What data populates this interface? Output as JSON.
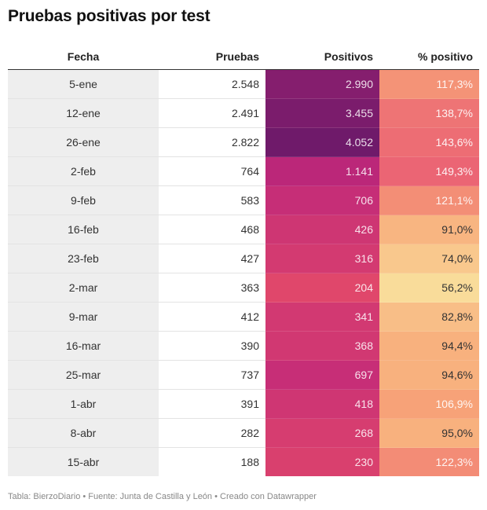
{
  "title": "Pruebas positivas por test",
  "footer": "Tabla: BierzoDiario • Fuente: Junta de Castilla y León • Creado con Datawrapper",
  "chart_data": {
    "type": "table",
    "columns": [
      "Fecha",
      "Pruebas",
      "Positivos",
      "% positivo"
    ],
    "rows": [
      {
        "fecha": "5-ene",
        "pruebas": "2.548",
        "positivos": "2.990",
        "pct": "117,3%",
        "pos_value": 2990,
        "pct_value": 117.3
      },
      {
        "fecha": "12-ene",
        "pruebas": "2.491",
        "positivos": "3.455",
        "pct": "138,7%",
        "pos_value": 3455,
        "pct_value": 138.7
      },
      {
        "fecha": "26-ene",
        "pruebas": "2.822",
        "positivos": "4.052",
        "pct": "143,6%",
        "pos_value": 4052,
        "pct_value": 143.6
      },
      {
        "fecha": "2-feb",
        "pruebas": "764",
        "positivos": "1.141",
        "pct": "149,3%",
        "pos_value": 1141,
        "pct_value": 149.3
      },
      {
        "fecha": "9-feb",
        "pruebas": "583",
        "positivos": "706",
        "pct": "121,1%",
        "pos_value": 706,
        "pct_value": 121.1
      },
      {
        "fecha": "16-feb",
        "pruebas": "468",
        "positivos": "426",
        "pct": "91,0%",
        "pos_value": 426,
        "pct_value": 91.0
      },
      {
        "fecha": "23-feb",
        "pruebas": "427",
        "positivos": "316",
        "pct": "74,0%",
        "pos_value": 316,
        "pct_value": 74.0
      },
      {
        "fecha": "2-mar",
        "pruebas": "363",
        "positivos": "204",
        "pct": "56,2%",
        "pos_value": 204,
        "pct_value": 56.2
      },
      {
        "fecha": "9-mar",
        "pruebas": "412",
        "positivos": "341",
        "pct": "82,8%",
        "pos_value": 341,
        "pct_value": 82.8
      },
      {
        "fecha": "16-mar",
        "pruebas": "390",
        "positivos": "368",
        "pct": "94,4%",
        "pos_value": 368,
        "pct_value": 94.4
      },
      {
        "fecha": "25-mar",
        "pruebas": "737",
        "positivos": "697",
        "pct": "94,6%",
        "pos_value": 697,
        "pct_value": 94.6
      },
      {
        "fecha": "1-abr",
        "pruebas": "391",
        "positivos": "418",
        "pct": "106,9%",
        "pos_value": 418,
        "pct_value": 106.9
      },
      {
        "fecha": "8-abr",
        "pruebas": "282",
        "positivos": "268",
        "pct": "95,0%",
        "pos_value": 268,
        "pct_value": 95.0
      },
      {
        "fecha": "15-abr",
        "pruebas": "188",
        "positivos": "230",
        "pct": "122,3%",
        "pos_value": 230,
        "pct_value": 122.3
      }
    ],
    "positivos_colors": {
      "low": "#e0476b",
      "mid": "#c0287a",
      "high": "#6f1a6a"
    },
    "pct_colors": {
      "low": "#f9dc9a",
      "mid": "#f8a878",
      "high": "#eb6574"
    }
  }
}
